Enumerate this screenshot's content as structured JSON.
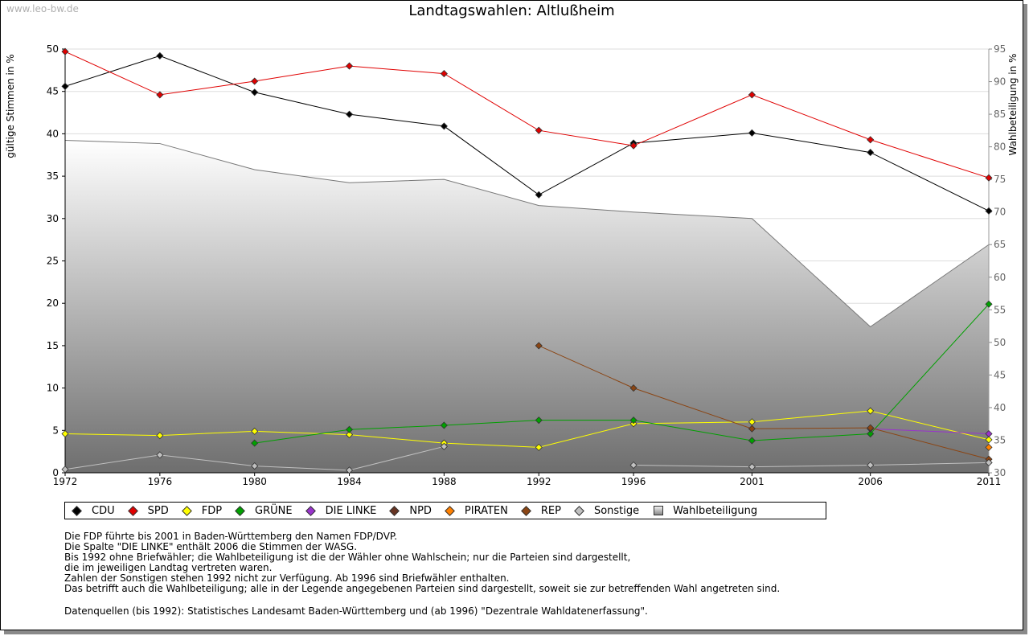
{
  "watermark": "www.leo-bw.de",
  "chart_data": {
    "type": "line",
    "title": "Landtagswahlen: Altlußheim",
    "ylabel": "gültige Stimmen in %",
    "ylabel_right": "Wahlbeteiligung in %",
    "ylim": [
      0,
      50
    ],
    "ylim_right": [
      30,
      95
    ],
    "yticks": [
      0,
      5,
      10,
      15,
      20,
      25,
      30,
      35,
      40,
      45,
      50
    ],
    "yticks_right": [
      30,
      35,
      40,
      45,
      50,
      55,
      60,
      65,
      70,
      75,
      80,
      85,
      90,
      95
    ],
    "x": [
      1972,
      1976,
      1980,
      1984,
      1988,
      1992,
      1996,
      2001,
      2006,
      2011
    ],
    "grid": true,
    "legend_position": "bottom",
    "series": [
      {
        "name": "CDU",
        "color": "#000000",
        "values": [
          45.6,
          49.2,
          44.9,
          42.3,
          40.9,
          32.8,
          38.9,
          40.1,
          37.8,
          30.9
        ]
      },
      {
        "name": "SPD",
        "color": "#e00000",
        "values": [
          49.7,
          44.6,
          46.2,
          48.0,
          47.1,
          40.4,
          38.6,
          44.6,
          39.3,
          34.8
        ]
      },
      {
        "name": "FDP",
        "color": "#ffff00",
        "values": [
          4.6,
          4.4,
          4.9,
          4.5,
          3.5,
          3.0,
          5.8,
          6.0,
          7.3,
          3.9
        ]
      },
      {
        "name": "GRÜNE",
        "color": "#00a000",
        "values": [
          null,
          null,
          3.5,
          5.1,
          5.6,
          6.2,
          6.2,
          3.8,
          4.6,
          19.9
        ]
      },
      {
        "name": "DIE LINKE",
        "color": "#9933cc",
        "values": [
          null,
          null,
          null,
          null,
          null,
          null,
          null,
          null,
          5.2,
          4.6
        ]
      },
      {
        "name": "NPD",
        "color": "#663322",
        "values": [
          null,
          null,
          null,
          null,
          null,
          null,
          null,
          null,
          null,
          1.2
        ]
      },
      {
        "name": "PIRATEN",
        "color": "#ff8000",
        "values": [
          null,
          null,
          null,
          null,
          null,
          null,
          null,
          null,
          null,
          3.0
        ]
      },
      {
        "name": "REP",
        "color": "#8b4513",
        "values": [
          null,
          null,
          null,
          null,
          null,
          15.0,
          10.0,
          5.2,
          5.3,
          1.6
        ]
      },
      {
        "name": "Sonstige",
        "color": "#c0c0c0",
        "values": [
          0.4,
          2.1,
          0.8,
          0.3,
          3.1,
          null,
          0.9,
          0.7,
          0.9,
          1.2
        ]
      }
    ],
    "turnout": {
      "name": "Wahlbeteiligung",
      "values": [
        81.0,
        80.5,
        76.5,
        74.5,
        75.0,
        71.0,
        70.0,
        69.0,
        52.4,
        65.0
      ]
    }
  },
  "legend": [
    {
      "label": "CDU",
      "color": "#000000"
    },
    {
      "label": "SPD",
      "color": "#e00000"
    },
    {
      "label": "FDP",
      "color": "#ffff00"
    },
    {
      "label": "GRÜNE",
      "color": "#00a000"
    },
    {
      "label": "DIE LINKE",
      "color": "#9933cc"
    },
    {
      "label": "NPD",
      "color": "#663322"
    },
    {
      "label": "PIRATEN",
      "color": "#ff8000"
    },
    {
      "label": "REP",
      "color": "#8b4513"
    },
    {
      "label": "Sonstige",
      "color": "#c0c0c0"
    },
    {
      "label": "Wahlbeteiligung",
      "color": "#aaaaaa"
    }
  ],
  "notes": [
    "Die FDP führte bis 2001 in Baden-Württemberg den Namen FDP/DVP.",
    "Die Spalte \"DIE LINKE\" enthält 2006 die Stimmen der WASG.",
    "Bis 1992 ohne Briefwähler; die Wahlbeteiligung ist die der Wähler ohne Wahlschein; nur die Parteien sind dargestellt,",
    "die im jeweiligen Landtag vertreten waren.",
    "Zahlen der Sonstigen stehen 1992 nicht zur Verfügung. Ab 1996 sind Briefwähler enthalten.",
    "Das betrifft auch die Wahlbeteiligung; alle in der Legende angegebenen Parteien sind dargestellt, soweit sie zur betreffenden Wahl angetreten sind."
  ],
  "source": "Datenquellen (bis 1992): Statistisches Landesamt Baden-Württemberg und (ab 1996) \"Dezentrale Wahldatenerfassung\"."
}
